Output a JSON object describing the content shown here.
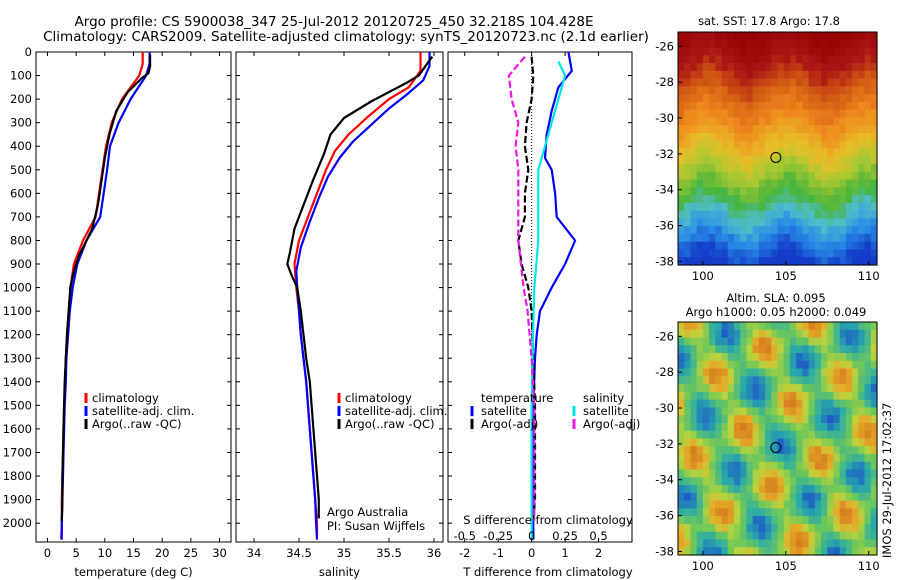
{
  "title": {
    "line1": "Argo profile: CS 5900038_347 25-Jul-2012 20120725_450 32.218S 104.428E",
    "line2": "Climatology: CARS2009. Satellite-adjusted climatology: synTS_20120723.nc (2.1d earlier)"
  },
  "stamp": "IMOS 29-Jul-2012 17:02:37",
  "colors": {
    "climatology": "#ff0000",
    "satellite": "#0000ff",
    "argo": "#000000",
    "salinity_satellite": "#00e6e6",
    "salinity_argo": "#e619e6"
  },
  "chart_data": [
    {
      "type": "line",
      "name": "temperature",
      "xlabel": "temperature (deg C)",
      "ylabel": "",
      "xlim": [
        -2,
        32
      ],
      "ylim": [
        2080,
        0
      ],
      "xticks": [
        0,
        5,
        10,
        15,
        20,
        25,
        30
      ],
      "yticks": [
        0,
        100,
        200,
        300,
        400,
        500,
        600,
        700,
        800,
        900,
        1000,
        1100,
        1200,
        1300,
        1400,
        1500,
        1600,
        1700,
        1800,
        1900,
        2000
      ],
      "legend": [
        "climatology",
        "satellite-adj. clim.",
        "Argo(..raw -QC)"
      ],
      "series": [
        {
          "name": "climatology",
          "color": "#ff0000",
          "points": [
            [
              16.6,
              0
            ],
            [
              16.6,
              50
            ],
            [
              16,
              100
            ],
            [
              13,
              200
            ],
            [
              11.2,
              300
            ],
            [
              10.2,
              400
            ],
            [
              9.6,
              500
            ],
            [
              9,
              600
            ],
            [
              8.4,
              700
            ],
            [
              6.2,
              800
            ],
            [
              4.6,
              900
            ],
            [
              4,
              1000
            ],
            [
              3.7,
              1100
            ],
            [
              3.4,
              1200
            ],
            [
              3.2,
              1300
            ],
            [
              3.1,
              1400
            ],
            [
              2.9,
              1500
            ],
            [
              2.8,
              1600
            ],
            [
              2.7,
              1700
            ],
            [
              2.6,
              1800
            ],
            [
              2.5,
              1900
            ],
            [
              2.5,
              2000
            ],
            [
              2.4,
              2070
            ]
          ]
        },
        {
          "name": "satellite-adj. clim.",
          "color": "#0000ff",
          "points": [
            [
              17.8,
              0
            ],
            [
              17.8,
              50
            ],
            [
              17.2,
              100
            ],
            [
              14.5,
              200
            ],
            [
              12.4,
              300
            ],
            [
              10.9,
              400
            ],
            [
              10.4,
              500
            ],
            [
              9.8,
              600
            ],
            [
              9.2,
              700
            ],
            [
              6.8,
              800
            ],
            [
              5.2,
              900
            ],
            [
              4.4,
              1000
            ],
            [
              3.9,
              1100
            ],
            [
              3.6,
              1200
            ],
            [
              3.3,
              1300
            ],
            [
              3.2,
              1400
            ],
            [
              3,
              1500
            ],
            [
              2.9,
              1600
            ],
            [
              2.8,
              1700
            ],
            [
              2.7,
              1800
            ],
            [
              2.6,
              1900
            ],
            [
              2.5,
              2000
            ],
            [
              2.5,
              2070
            ]
          ]
        },
        {
          "name": "Argo(..raw -QC)",
          "color": "#000000",
          "points": [
            [
              17.9,
              10
            ],
            [
              17.9,
              60
            ],
            [
              17.6,
              90
            ],
            [
              16.5,
              110
            ],
            [
              14,
              170
            ],
            [
              12,
              250
            ],
            [
              10.8,
              350
            ],
            [
              10,
              450
            ],
            [
              9.4,
              550
            ],
            [
              8.8,
              650
            ],
            [
              7.8,
              750
            ],
            [
              6.8,
              800
            ],
            [
              5.4,
              870
            ],
            [
              4.4,
              950
            ],
            [
              4,
              1000
            ],
            [
              3.7,
              1100
            ],
            [
              3.4,
              1200
            ],
            [
              3.2,
              1300
            ],
            [
              3,
              1400
            ],
            [
              2.9,
              1500
            ],
            [
              2.8,
              1600
            ],
            [
              2.7,
              1700
            ],
            [
              2.6,
              1800
            ],
            [
              2.6,
              1900
            ],
            [
              2.5,
              1990
            ]
          ]
        }
      ]
    },
    {
      "type": "line",
      "name": "salinity",
      "xlabel": "salinity",
      "ylabel": "",
      "xlim": [
        33.8,
        36.1
      ],
      "ylim": [
        2080,
        0
      ],
      "xticks": [
        34,
        34.5,
        35,
        35.5,
        36
      ],
      "legend": [
        "climatology",
        "satellite-adj. clim.",
        "Argo(..raw -QC)"
      ],
      "annotations": [
        "Argo Australia",
        "PI: Susan Wijffels"
      ],
      "series": [
        {
          "name": "climatology",
          "color": "#ff0000",
          "points": [
            [
              35.85,
              0
            ],
            [
              35.85,
              80
            ],
            [
              35.72,
              150
            ],
            [
              35.5,
              200
            ],
            [
              35.25,
              280
            ],
            [
              35.05,
              350
            ],
            [
              34.9,
              420
            ],
            [
              34.8,
              500
            ],
            [
              34.7,
              600
            ],
            [
              34.6,
              700
            ],
            [
              34.5,
              800
            ],
            [
              34.45,
              900
            ],
            [
              34.47,
              1000
            ],
            [
              34.5,
              1100
            ],
            [
              34.52,
              1200
            ],
            [
              34.55,
              1300
            ],
            [
              34.58,
              1400
            ],
            [
              34.6,
              1500
            ],
            [
              34.62,
              1600
            ],
            [
              34.64,
              1700
            ],
            [
              34.66,
              1800
            ],
            [
              34.68,
              1900
            ],
            [
              34.7,
              2000
            ],
            [
              34.7,
              2070
            ]
          ]
        },
        {
          "name": "satellite-adj. clim.",
          "color": "#0000ff",
          "points": [
            [
              35.95,
              0
            ],
            [
              35.95,
              60
            ],
            [
              35.88,
              120
            ],
            [
              35.7,
              180
            ],
            [
              35.5,
              240
            ],
            [
              35.3,
              310
            ],
            [
              35.1,
              380
            ],
            [
              34.95,
              450
            ],
            [
              34.82,
              530
            ],
            [
              34.72,
              620
            ],
            [
              34.62,
              720
            ],
            [
              34.52,
              830
            ],
            [
              34.47,
              930
            ],
            [
              34.48,
              1000
            ],
            [
              34.5,
              1100
            ],
            [
              34.52,
              1200
            ],
            [
              34.55,
              1300
            ],
            [
              34.58,
              1400
            ],
            [
              34.6,
              1500
            ],
            [
              34.62,
              1600
            ],
            [
              34.64,
              1700
            ],
            [
              34.66,
              1800
            ],
            [
              34.68,
              1900
            ],
            [
              34.69,
              2000
            ],
            [
              34.7,
              2070
            ]
          ]
        },
        {
          "name": "Argo(..raw -QC)",
          "color": "#000000",
          "points": [
            [
              35.98,
              20
            ],
            [
              35.83,
              100
            ],
            [
              35.7,
              130
            ],
            [
              35.55,
              160
            ],
            [
              35.3,
              210
            ],
            [
              35,
              280
            ],
            [
              34.85,
              350
            ],
            [
              34.78,
              430
            ],
            [
              34.65,
              550
            ],
            [
              34.55,
              650
            ],
            [
              34.45,
              750
            ],
            [
              34.4,
              850
            ],
            [
              34.37,
              900
            ],
            [
              34.42,
              950
            ],
            [
              34.48,
              1000
            ],
            [
              34.52,
              1100
            ],
            [
              34.55,
              1200
            ],
            [
              34.58,
              1300
            ],
            [
              34.62,
              1400
            ],
            [
              34.64,
              1500
            ],
            [
              34.66,
              1600
            ],
            [
              34.68,
              1700
            ],
            [
              34.7,
              1800
            ],
            [
              34.72,
              1900
            ],
            [
              34.72,
              1980
            ]
          ]
        }
      ]
    },
    {
      "type": "line",
      "name": "difference",
      "xlabel": "T difference from climatology",
      "xlabel_top": "S difference from climatology",
      "xlim": [
        -2.5,
        3
      ],
      "ylim": [
        2080,
        0
      ],
      "xticks_T": [
        -2,
        -1,
        0,
        1,
        2
      ],
      "xticks_S": [
        "-0.5",
        "-0.25",
        "0",
        "0.25",
        "0.5"
      ],
      "legend_headers": [
        "temperature",
        "salinity"
      ],
      "legend": [
        "satellite",
        "Argo(-adj)",
        "satellite",
        "Argo(-adj)"
      ],
      "series": [
        {
          "name": "temperature satellite",
          "color": "#0000ff",
          "points": [
            [
              1.1,
              0
            ],
            [
              1.2,
              80
            ],
            [
              0.8,
              150
            ],
            [
              0.6,
              250
            ],
            [
              0.45,
              350
            ],
            [
              0.4,
              450
            ],
            [
              0.6,
              500
            ],
            [
              0.7,
              600
            ],
            [
              0.75,
              700
            ],
            [
              1.3,
              800
            ],
            [
              1,
              900
            ],
            [
              0.6,
              1000
            ],
            [
              0.25,
              1100
            ],
            [
              0.15,
              1200
            ],
            [
              0.1,
              1300
            ],
            [
              0.05,
              1500
            ],
            [
              0.05,
              2000
            ],
            [
              0.05,
              2070
            ]
          ]
        },
        {
          "name": "temperature Argo(-adj)",
          "color": "#000000",
          "points": [
            [
              0,
              20
            ],
            [
              0.05,
              100
            ],
            [
              0,
              200
            ],
            [
              -0.15,
              300
            ],
            [
              -0.2,
              400
            ],
            [
              -0.1,
              500
            ],
            [
              -0.2,
              600
            ],
            [
              -0.2,
              700
            ],
            [
              -0.4,
              800
            ],
            [
              -0.3,
              900
            ],
            [
              -0.1,
              1000
            ],
            [
              0,
              1100
            ],
            [
              0.05,
              1300
            ],
            [
              0.1,
              1500
            ],
            [
              0.1,
              1700
            ],
            [
              0.1,
              1900
            ],
            [
              0.05,
              1990
            ]
          ]
        },
        {
          "name": "salinity satellite",
          "color": "#00e6e6",
          "points": [
            [
              0.2,
              40
            ],
            [
              0.25,
              100
            ],
            [
              0.2,
              200
            ],
            [
              0.15,
              300
            ],
            [
              0.1,
              400
            ],
            [
              0.05,
              500
            ],
            [
              0.05,
              700
            ],
            [
              0.05,
              800
            ],
            [
              0.02,
              1000
            ],
            [
              0.01,
              1200
            ],
            [
              0,
              1500
            ],
            [
              0,
              2070
            ]
          ]
        },
        {
          "name": "salinity Argo(-adj)",
          "color": "#e619e6",
          "points": [
            [
              -0.05,
              20
            ],
            [
              -0.17,
              100
            ],
            [
              -0.15,
              200
            ],
            [
              -0.1,
              300
            ],
            [
              -0.12,
              400
            ],
            [
              -0.1,
              500
            ],
            [
              -0.1,
              600
            ],
            [
              -0.1,
              700
            ],
            [
              -0.1,
              800
            ],
            [
              -0.08,
              900
            ],
            [
              -0.06,
              1000
            ],
            [
              -0.03,
              1100
            ],
            [
              0,
              1300
            ],
            [
              0.02,
              1500
            ],
            [
              0.02,
              1700
            ],
            [
              0.02,
              1900
            ],
            [
              0.02,
              1990
            ]
          ]
        }
      ]
    },
    {
      "type": "heatmap",
      "name": "sst_map",
      "title": "sat. SST: 17.8 Argo: 17.8",
      "xticks": [
        100,
        105,
        110
      ],
      "yticks": [
        -26,
        -28,
        -30,
        -32,
        -34,
        -36,
        -38
      ],
      "xlim": [
        98.5,
        110.5
      ],
      "ylim": [
        -38.2,
        -25.2
      ],
      "marker": [
        104.4,
        -32.2
      ]
    },
    {
      "type": "heatmap",
      "name": "sla_map",
      "title_line1": "Altim. SLA: 0.095",
      "title_line2": "Argo h1000: 0.05 h2000: 0.049",
      "xticks": [
        100,
        105,
        110
      ],
      "yticks": [
        -26,
        -28,
        -30,
        -32,
        -34,
        -36,
        -38
      ],
      "xlim": [
        98.5,
        110.5
      ],
      "ylim": [
        -38.2,
        -25.2
      ],
      "marker": [
        104.4,
        -32.2
      ]
    }
  ]
}
